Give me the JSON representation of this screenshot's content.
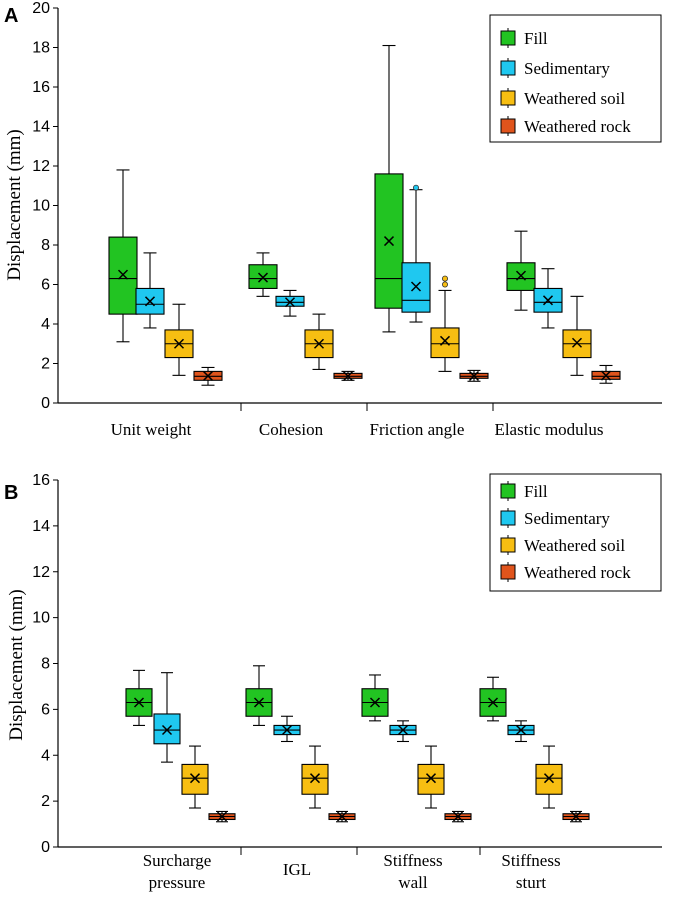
{
  "colors": {
    "Fill": "#22c422",
    "Sedimentary": "#1fc8f0",
    "Weathered soil": "#f7be12",
    "Weathered rock": "#e0541c"
  },
  "chart_data": [
    {
      "type": "boxplot",
      "panel": "A",
      "ylabel": "Displacement  (mm)",
      "ylim": [
        0,
        20
      ],
      "yticks": [
        0,
        2,
        4,
        6,
        8,
        10,
        12,
        14,
        16,
        18,
        20
      ],
      "grid": false,
      "legend": {
        "position": "top-right",
        "entries": [
          "Fill",
          "Sedimentary",
          "Weathered soil",
          "Weathered rock"
        ]
      },
      "categories": [
        {
          "label": [
            "Unit weight"
          ]
        },
        {
          "label": [
            "Cohesion"
          ]
        },
        {
          "label": [
            "Friction angle"
          ]
        },
        {
          "label": [
            "Elastic modulus"
          ]
        }
      ],
      "series": [
        {
          "name": "Fill",
          "boxes": [
            {
              "min": 3.1,
              "q1": 4.5,
              "median": 6.3,
              "q3": 8.4,
              "max": 11.8,
              "mean": 6.5,
              "outliers": []
            },
            {
              "min": 5.4,
              "q1": 5.8,
              "median": 6.3,
              "q3": 7.0,
              "max": 7.6,
              "mean": 6.35,
              "outliers": []
            },
            {
              "min": 3.6,
              "q1": 4.8,
              "median": 6.3,
              "q3": 11.6,
              "max": 18.1,
              "mean": 8.2,
              "outliers": []
            },
            {
              "min": 4.7,
              "q1": 5.7,
              "median": 6.3,
              "q3": 7.1,
              "max": 8.7,
              "mean": 6.45,
              "outliers": []
            }
          ]
        },
        {
          "name": "Sedimentary",
          "boxes": [
            {
              "min": 3.8,
              "q1": 4.5,
              "median": 5.0,
              "q3": 5.8,
              "max": 7.6,
              "mean": 5.15,
              "outliers": []
            },
            {
              "min": 4.4,
              "q1": 4.9,
              "median": 5.1,
              "q3": 5.4,
              "max": 5.7,
              "mean": 5.1,
              "outliers": []
            },
            {
              "min": 4.1,
              "q1": 4.6,
              "median": 5.2,
              "q3": 7.1,
              "max": 10.8,
              "mean": 5.9,
              "outliers": [
                10.9
              ]
            },
            {
              "min": 3.8,
              "q1": 4.6,
              "median": 5.1,
              "q3": 5.8,
              "max": 6.8,
              "mean": 5.2,
              "outliers": []
            }
          ]
        },
        {
          "name": "Weathered soil",
          "boxes": [
            {
              "min": 1.4,
              "q1": 2.3,
              "median": 3.0,
              "q3": 3.7,
              "max": 5.0,
              "mean": 3.0,
              "outliers": []
            },
            {
              "min": 1.7,
              "q1": 2.3,
              "median": 3.0,
              "q3": 3.7,
              "max": 4.5,
              "mean": 3.0,
              "outliers": []
            },
            {
              "min": 1.6,
              "q1": 2.3,
              "median": 3.0,
              "q3": 3.8,
              "max": 5.7,
              "mean": 3.15,
              "outliers": [
                6.0,
                6.3
              ]
            },
            {
              "min": 1.4,
              "q1": 2.3,
              "median": 3.0,
              "q3": 3.7,
              "max": 5.4,
              "mean": 3.05,
              "outliers": []
            }
          ]
        },
        {
          "name": "Weathered rock",
          "boxes": [
            {
              "min": 0.9,
              "q1": 1.15,
              "median": 1.35,
              "q3": 1.6,
              "max": 1.8,
              "mean": 1.37,
              "outliers": []
            },
            {
              "min": 1.15,
              "q1": 1.25,
              "median": 1.35,
              "q3": 1.5,
              "max": 1.6,
              "mean": 1.36,
              "outliers": []
            },
            {
              "min": 1.1,
              "q1": 1.25,
              "median": 1.35,
              "q3": 1.5,
              "max": 1.65,
              "mean": 1.37,
              "outliers": []
            },
            {
              "min": 1.0,
              "q1": 1.2,
              "median": 1.35,
              "q3": 1.6,
              "max": 1.9,
              "mean": 1.39,
              "outliers": []
            }
          ]
        }
      ]
    },
    {
      "type": "boxplot",
      "panel": "B",
      "ylabel": "Displacement  (mm)",
      "ylim": [
        0,
        16
      ],
      "yticks": [
        0,
        2,
        4,
        6,
        8,
        10,
        12,
        14,
        16
      ],
      "grid": false,
      "legend": {
        "position": "top-right",
        "entries": [
          "Fill",
          "Sedimentary",
          "Weathered soil",
          "Weathered rock"
        ]
      },
      "categories": [
        {
          "label": [
            "Surcharge",
            "pressure"
          ]
        },
        {
          "label": [
            "IGL"
          ]
        },
        {
          "label": [
            "Stiffness",
            "wall"
          ]
        },
        {
          "label": [
            "Stiffness",
            "sturt"
          ]
        }
      ],
      "series": [
        {
          "name": "Fill",
          "boxes": [
            {
              "min": 5.3,
              "q1": 5.7,
              "median": 6.3,
              "q3": 6.9,
              "max": 7.7,
              "mean": 6.3,
              "outliers": []
            },
            {
              "min": 5.3,
              "q1": 5.7,
              "median": 6.3,
              "q3": 6.9,
              "max": 7.9,
              "mean": 6.3,
              "outliers": []
            },
            {
              "min": 5.5,
              "q1": 5.7,
              "median": 6.3,
              "q3": 6.9,
              "max": 7.5,
              "mean": 6.3,
              "outliers": []
            },
            {
              "min": 5.5,
              "q1": 5.7,
              "median": 6.3,
              "q3": 6.9,
              "max": 7.4,
              "mean": 6.3,
              "outliers": []
            }
          ]
        },
        {
          "name": "Sedimentary",
          "boxes": [
            {
              "min": 3.7,
              "q1": 4.5,
              "median": 5.1,
              "q3": 5.8,
              "max": 7.6,
              "mean": 5.1,
              "outliers": []
            },
            {
              "min": 4.6,
              "q1": 4.9,
              "median": 5.1,
              "q3": 5.3,
              "max": 5.7,
              "mean": 5.1,
              "outliers": []
            },
            {
              "min": 4.6,
              "q1": 4.9,
              "median": 5.1,
              "q3": 5.3,
              "max": 5.5,
              "mean": 5.1,
              "outliers": []
            },
            {
              "min": 4.6,
              "q1": 4.9,
              "median": 5.1,
              "q3": 5.3,
              "max": 5.5,
              "mean": 5.1,
              "outliers": []
            }
          ]
        },
        {
          "name": "Weathered soil",
          "boxes": [
            {
              "min": 1.7,
              "q1": 2.3,
              "median": 3.0,
              "q3": 3.6,
              "max": 4.4,
              "mean": 3.0,
              "outliers": []
            },
            {
              "min": 1.7,
              "q1": 2.3,
              "median": 3.0,
              "q3": 3.6,
              "max": 4.4,
              "mean": 3.0,
              "outliers": []
            },
            {
              "min": 1.7,
              "q1": 2.3,
              "median": 3.0,
              "q3": 3.6,
              "max": 4.4,
              "mean": 3.0,
              "outliers": []
            },
            {
              "min": 1.7,
              "q1": 2.3,
              "median": 3.0,
              "q3": 3.6,
              "max": 4.4,
              "mean": 3.0,
              "outliers": []
            }
          ]
        },
        {
          "name": "Weathered rock",
          "boxes": [
            {
              "min": 1.1,
              "q1": 1.2,
              "median": 1.33,
              "q3": 1.45,
              "max": 1.55,
              "mean": 1.33,
              "outliers": []
            },
            {
              "min": 1.1,
              "q1": 1.2,
              "median": 1.33,
              "q3": 1.45,
              "max": 1.55,
              "mean": 1.33,
              "outliers": []
            },
            {
              "min": 1.1,
              "q1": 1.2,
              "median": 1.33,
              "q3": 1.45,
              "max": 1.55,
              "mean": 1.33,
              "outliers": []
            },
            {
              "min": 1.1,
              "q1": 1.2,
              "median": 1.33,
              "q3": 1.45,
              "max": 1.55,
              "mean": 1.33,
              "outliers": []
            }
          ]
        }
      ]
    }
  ]
}
